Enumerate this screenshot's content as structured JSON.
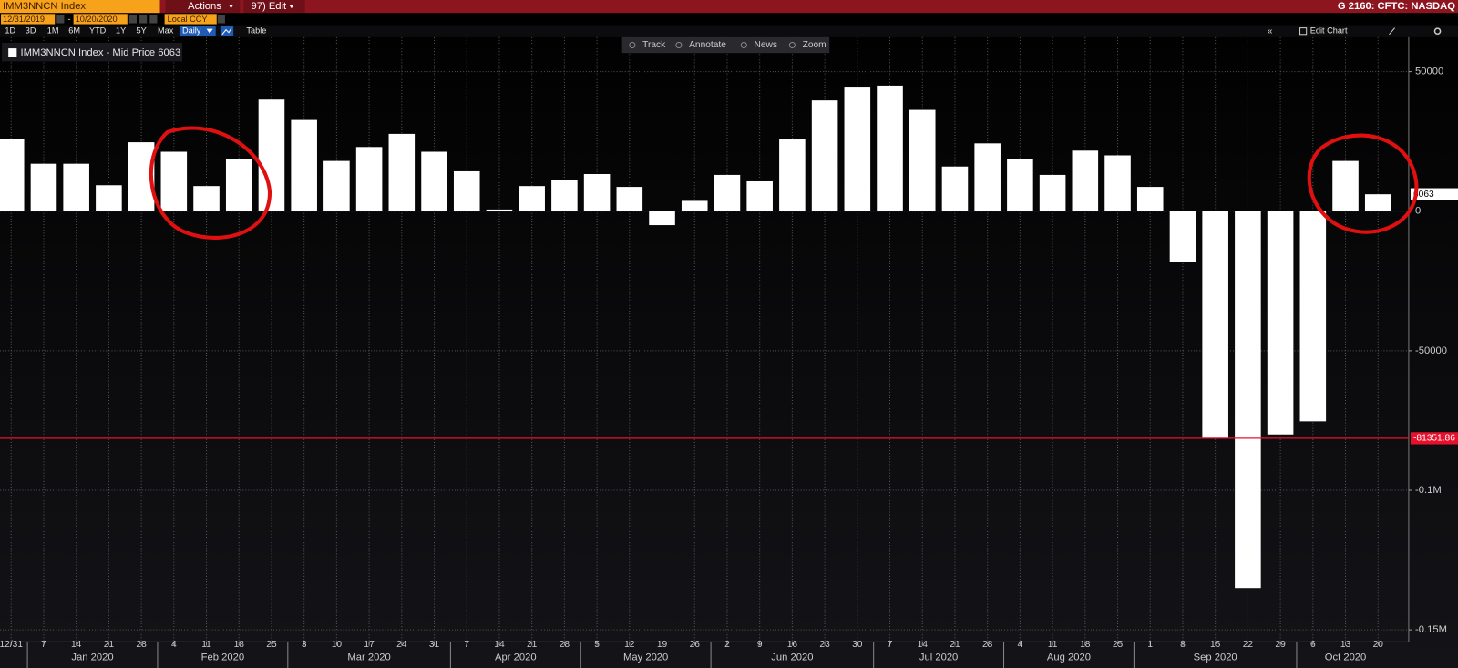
{
  "header": {
    "security": "IMM3NNCN Index",
    "actions": "Actions",
    "edit": "97) Edit",
    "source": "G 2160: CFTC: NASDAQ"
  },
  "date_range": {
    "start": "12/31/2019",
    "separator": "-",
    "end": "10/20/2020",
    "currency": "Local CCY"
  },
  "periods": [
    "1D",
    "3D",
    "1M",
    "6M",
    "YTD",
    "1Y",
    "5Y",
    "Max"
  ],
  "frequency": "Daily",
  "table_button": "Table",
  "edit_chart": "Edit Chart",
  "tools": [
    "Track",
    "Annotate",
    "News",
    "Zoom"
  ],
  "chart_data": {
    "type": "bar",
    "categories": [
      "12/31",
      "7",
      "14",
      "21",
      "28",
      "4",
      "11",
      "18",
      "25",
      "3",
      "10",
      "17",
      "24",
      "31",
      "7",
      "14",
      "21",
      "28",
      "5",
      "12",
      "19",
      "26",
      "2",
      "9",
      "16",
      "23",
      "30",
      "7",
      "14",
      "21",
      "28",
      "4",
      "11",
      "18",
      "25",
      "1",
      "8",
      "15",
      "22",
      "29",
      "6",
      "13",
      "20"
    ],
    "x_group_labels": [
      "Jan 2020",
      "Feb 2020",
      "Mar 2020",
      "Apr 2020",
      "May 2020",
      "Jun 2020",
      "Jul 2020",
      "Aug 2020",
      "Sep 2020",
      "Oct 2020"
    ],
    "series": [
      {
        "name": "IMM3NNCN Index - Mid Price",
        "color": "#ffffff",
        "values": [
          26000,
          17000,
          17000,
          9300,
          24700,
          21300,
          9000,
          18700,
          40000,
          32700,
          18000,
          23000,
          27700,
          21300,
          14300,
          600,
          9000,
          11300,
          13300,
          8700,
          -5000,
          3700,
          13000,
          10700,
          25700,
          39700,
          44300,
          45000,
          36300,
          16000,
          24300,
          18700,
          13000,
          21700,
          20000,
          8700,
          -18300,
          -81300,
          -135000,
          -80000,
          -75300,
          18000,
          6063
        ]
      }
    ],
    "ylim": [
      -154000,
      62000
    ],
    "yticks": [
      50000,
      0,
      -50000,
      {
        "value": -100000,
        "label": "-0.1M"
      },
      {
        "value": -150000,
        "label": "-0.15M"
      }
    ],
    "grid": true,
    "reference_line": {
      "value": -81351.86,
      "color": "#e8112d"
    }
  }
}
